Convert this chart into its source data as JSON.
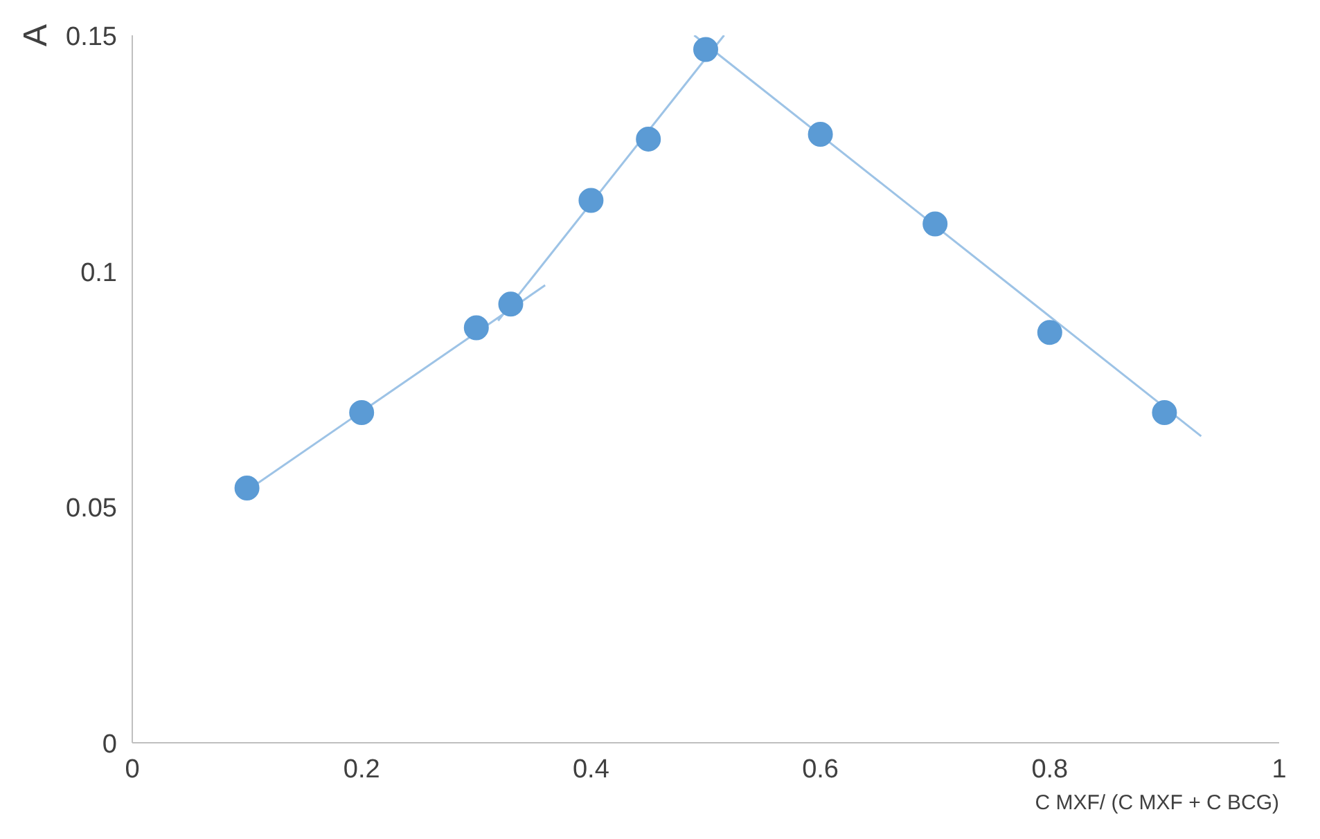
{
  "chart_data": {
    "type": "scatter",
    "xlabel": "C MXF/ (C MXF + C BCG)",
    "ylabel": "A",
    "xlim": [
      0,
      1
    ],
    "ylim": [
      0,
      0.15
    ],
    "xticks": [
      0,
      0.2,
      0.4,
      0.6,
      0.8,
      1
    ],
    "yticks": [
      0,
      0.05,
      0.1,
      0.15
    ],
    "grid": false,
    "series": [
      {
        "type": "line",
        "color": "#9dc3e6",
        "marker": "none",
        "x": [
          0.093,
          0.36
        ],
        "values": [
          0.0523,
          0.097
        ]
      },
      {
        "type": "line",
        "color": "#9dc3e6",
        "marker": "none",
        "x": [
          0.319,
          0.516
        ],
        "values": [
          0.0895,
          0.15
        ]
      },
      {
        "type": "line",
        "color": "#9dc3e6",
        "marker": "none",
        "x": [
          0.49,
          0.932
        ],
        "values": [
          0.15,
          0.065
        ]
      },
      {
        "color": "#5b9bd5",
        "marker": "circle",
        "x": [
          0.1,
          0.2,
          0.3,
          0.33,
          0.4,
          0.45,
          0.5,
          0.6,
          0.7,
          0.8,
          0.9
        ],
        "values": [
          0.054,
          0.07,
          0.088,
          0.093,
          0.115,
          0.128,
          0.147,
          0.129,
          0.11,
          0.087,
          0.07
        ]
      }
    ]
  }
}
